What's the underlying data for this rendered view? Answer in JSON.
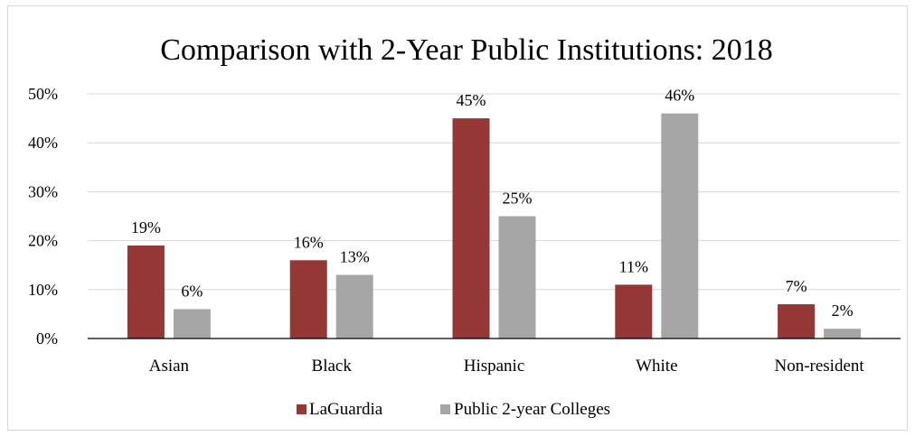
{
  "chart_data": {
    "type": "bar",
    "title": "Comparison with 2-Year Public Institutions:  2018",
    "xlabel": "",
    "ylabel": "",
    "ylim": [
      0,
      50
    ],
    "y_ticks": [
      0,
      10,
      20,
      30,
      40,
      50
    ],
    "y_tick_labels": [
      "0%",
      "10%",
      "20%",
      "30%",
      "40%",
      "50%"
    ],
    "grid": true,
    "legend_position": "bottom",
    "categories": [
      "Asian",
      "Black",
      "Hispanic",
      "White",
      "Non-resident"
    ],
    "series": [
      {
        "name": "LaGuardia",
        "color": "#953735",
        "values": [
          19,
          16,
          45,
          11,
          7
        ],
        "labels": [
          "19%",
          "16%",
          "45%",
          "11%",
          "7%"
        ]
      },
      {
        "name": "Public 2-year Colleges",
        "color": "#a6a6a6",
        "values": [
          6,
          13,
          25,
          46,
          2
        ],
        "labels": [
          "6%",
          "13%",
          "25%",
          "46%",
          "2%"
        ]
      }
    ]
  }
}
